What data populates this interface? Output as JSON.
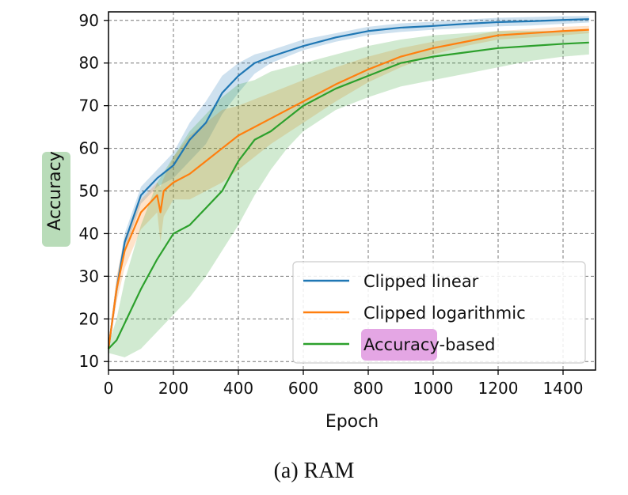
{
  "caption": "(a) RAM",
  "chart_data": {
    "type": "line",
    "xlabel": "Epoch",
    "ylabel": "Accuracy",
    "xlim": [
      0,
      1500
    ],
    "ylim": [
      8,
      92
    ],
    "xticks": [
      0,
      200,
      400,
      600,
      800,
      1000,
      1200,
      1400
    ],
    "yticks": [
      10,
      20,
      30,
      40,
      50,
      60,
      70,
      80,
      90
    ],
    "grid": true,
    "grid_style": "dashed",
    "legend_position": "lower-right",
    "highlights": {
      "ylabel_part": "Accuracy",
      "legend_part": "Accura"
    },
    "colors": {
      "highlight_green": "#b9dcb9",
      "highlight_pink": "#e4a6e4"
    },
    "series": [
      {
        "name": "Clipped linear",
        "color": "#1f77b4",
        "x": [
          0,
          25,
          50,
          100,
          150,
          200,
          250,
          300,
          350,
          400,
          450,
          500,
          600,
          700,
          800,
          900,
          1000,
          1100,
          1200,
          1300,
          1400,
          1480
        ],
        "y": [
          13,
          27,
          38,
          49,
          53,
          56,
          62,
          66,
          73,
          77,
          80,
          81.5,
          84,
          86,
          87.5,
          88.3,
          88.7,
          89.2,
          89.6,
          89.8,
          90.1,
          90.3
        ],
        "upper": [
          14,
          29,
          40,
          51,
          55,
          59,
          66,
          71,
          77,
          80,
          82,
          83,
          85.5,
          87,
          88.5,
          89.3,
          89.7,
          90.2,
          90.6,
          90.8,
          91,
          91
        ],
        "lower": [
          12,
          25,
          36,
          47,
          51,
          53,
          57,
          61,
          68,
          73,
          77.5,
          80,
          83,
          85,
          86.5,
          87.3,
          87.8,
          88.2,
          88.6,
          88.8,
          89.2,
          89.5
        ]
      },
      {
        "name": "Clipped logarithmic",
        "color": "#ff7f0e",
        "x": [
          0,
          25,
          50,
          100,
          150,
          160,
          170,
          200,
          250,
          300,
          350,
          400,
          450,
          500,
          600,
          700,
          800,
          900,
          1000,
          1100,
          1200,
          1300,
          1400,
          1480
        ],
        "y": [
          13,
          27,
          36,
          45,
          49,
          45,
          50,
          52,
          54,
          57,
          60,
          63,
          65,
          67,
          71,
          75,
          78.5,
          81.5,
          83.5,
          85,
          86.5,
          87,
          87.5,
          87.8
        ],
        "upper": [
          14,
          30,
          39,
          48,
          52,
          51,
          53,
          58,
          63,
          66,
          69,
          70,
          71.5,
          73,
          76,
          79,
          81.5,
          83.5,
          85,
          86.2,
          87.5,
          88,
          88.5,
          88.7
        ],
        "lower": [
          12,
          24,
          32,
          41,
          45,
          38,
          44,
          48,
          48,
          50,
          52,
          55,
          58,
          61,
          66,
          71,
          75.5,
          79,
          82,
          84,
          85.5,
          86,
          86.5,
          87
        ]
      },
      {
        "name": "Accuracy-based",
        "color": "#2ca02c",
        "x": [
          0,
          25,
          50,
          100,
          150,
          200,
          250,
          300,
          350,
          400,
          450,
          500,
          550,
          600,
          700,
          800,
          900,
          1000,
          1100,
          1200,
          1300,
          1400,
          1480
        ],
        "y": [
          13,
          15,
          19,
          27,
          34,
          40,
          42,
          46,
          50,
          57,
          62,
          64,
          67,
          70,
          74,
          77,
          80,
          81.5,
          82.5,
          83.5,
          84,
          84.5,
          84.8
        ],
        "upper": [
          14,
          20,
          29,
          42,
          52,
          58,
          64,
          68,
          72,
          75,
          76,
          78,
          79,
          80,
          82,
          84,
          85.5,
          86.5,
          87,
          87.5,
          87.5,
          87.5,
          87.5
        ],
        "lower": [
          12,
          11.5,
          11,
          13,
          17,
          21,
          25,
          30,
          36,
          42,
          49,
          55,
          60,
          64,
          69,
          72,
          74.5,
          76,
          77.5,
          79,
          80.5,
          81.5,
          82
        ]
      }
    ]
  }
}
